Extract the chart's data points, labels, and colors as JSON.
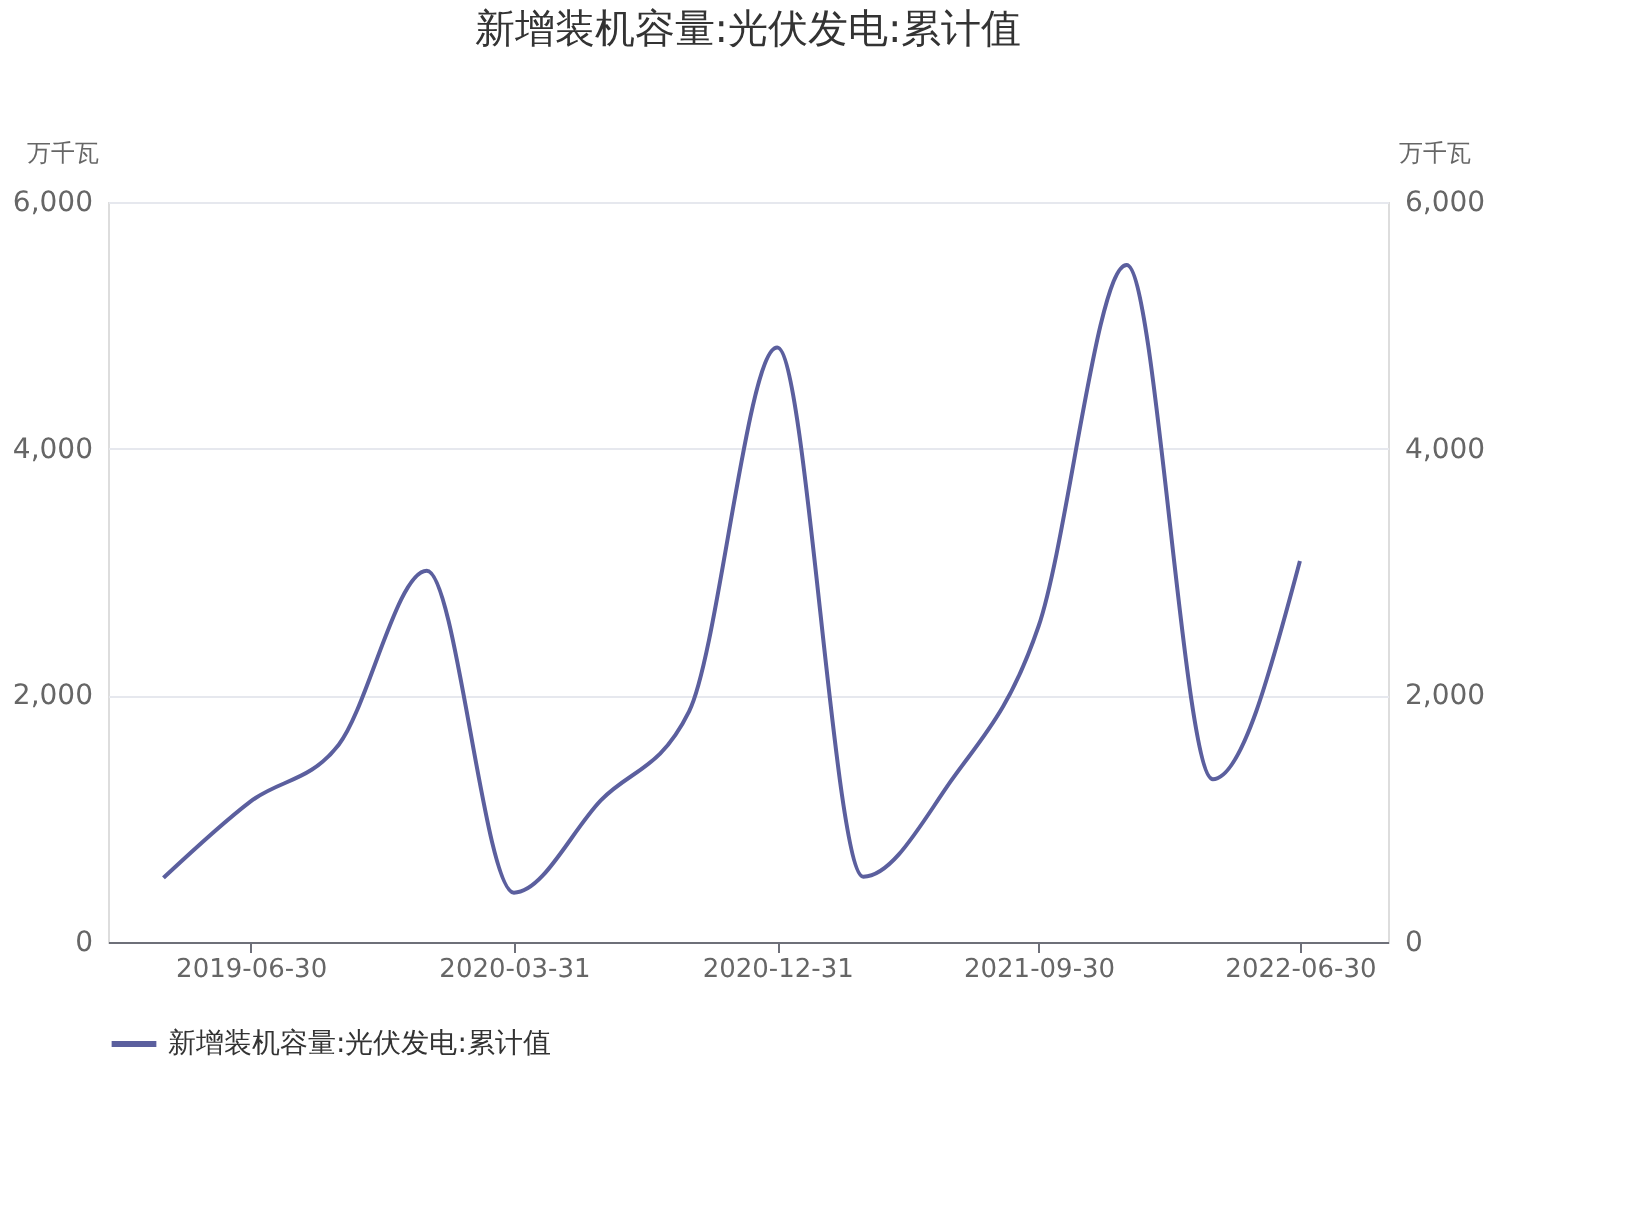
{
  "chart_data": {
    "type": "line",
    "title": "新增装机容量:光伏发电:累计值",
    "ylabel": "万千瓦",
    "y2label": "万千瓦",
    "x": [
      "2019-03-31",
      "2019-06-30",
      "2019-09-30",
      "2019-12-31",
      "2020-03-31",
      "2020-06-30",
      "2020-09-30",
      "2020-12-31",
      "2021-03-31",
      "2021-06-30",
      "2021-09-30",
      "2021-12-31",
      "2022-03-31",
      "2022-06-30"
    ],
    "series": [
      {
        "name": "新增装机容量:光伏发电:累计值",
        "color": "#5b5f9e",
        "values": [
          520,
          1140,
          1600,
          3010,
          400,
          1150,
          1870,
          4820,
          530,
          1300,
          2560,
          5490,
          1320,
          3090
        ]
      }
    ],
    "xlim": [
      "2019-02-01",
      "2022-09-30"
    ],
    "xticks": [
      "2019-06-30",
      "2020-03-31",
      "2020-12-31",
      "2021-09-30",
      "2022-06-30"
    ],
    "ylim": [
      0,
      6000
    ],
    "yticks": [
      0,
      {
        "value": 2000,
        "label": "2,000"
      },
      {
        "value": 4000,
        "label": "4,000"
      },
      {
        "value": 6000,
        "label": "6,000"
      }
    ],
    "y2lim": [
      0,
      6000
    ],
    "y2ticks": [
      0,
      {
        "value": 2000,
        "label": "2,000"
      },
      {
        "value": 4000,
        "label": "4,000"
      },
      {
        "value": 6000,
        "label": "6,000"
      }
    ],
    "grid": "y",
    "legend": "bottom",
    "marker": "none",
    "line_style": "solid"
  }
}
